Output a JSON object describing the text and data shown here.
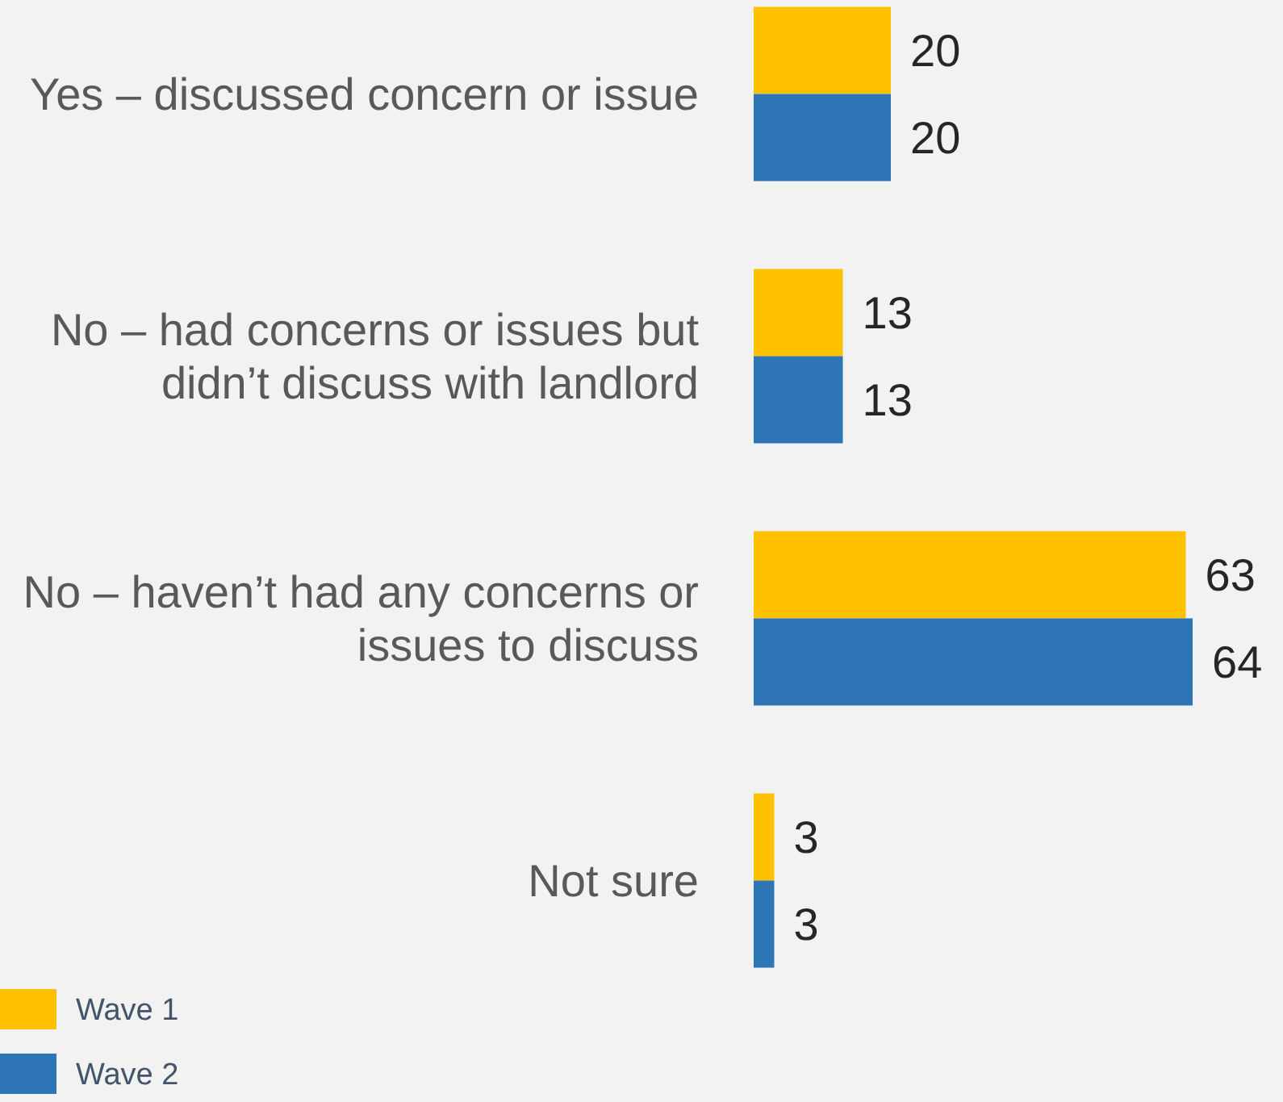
{
  "chart_data": {
    "type": "bar",
    "orientation": "horizontal",
    "categories": [
      "Yes – discussed concern or issue",
      "No – had concerns or issues but didn’t discuss with landlord",
      "No – haven’t had any concerns or issues to discuss",
      "Not sure"
    ],
    "series": [
      {
        "name": "Wave 1",
        "color": "#ffc000",
        "values": [
          20,
          13,
          63,
          3
        ]
      },
      {
        "name": "Wave 2",
        "color": "#2e75b6",
        "values": [
          20,
          13,
          64,
          3
        ]
      }
    ],
    "data_labels": true,
    "legend": "bottom left"
  }
}
